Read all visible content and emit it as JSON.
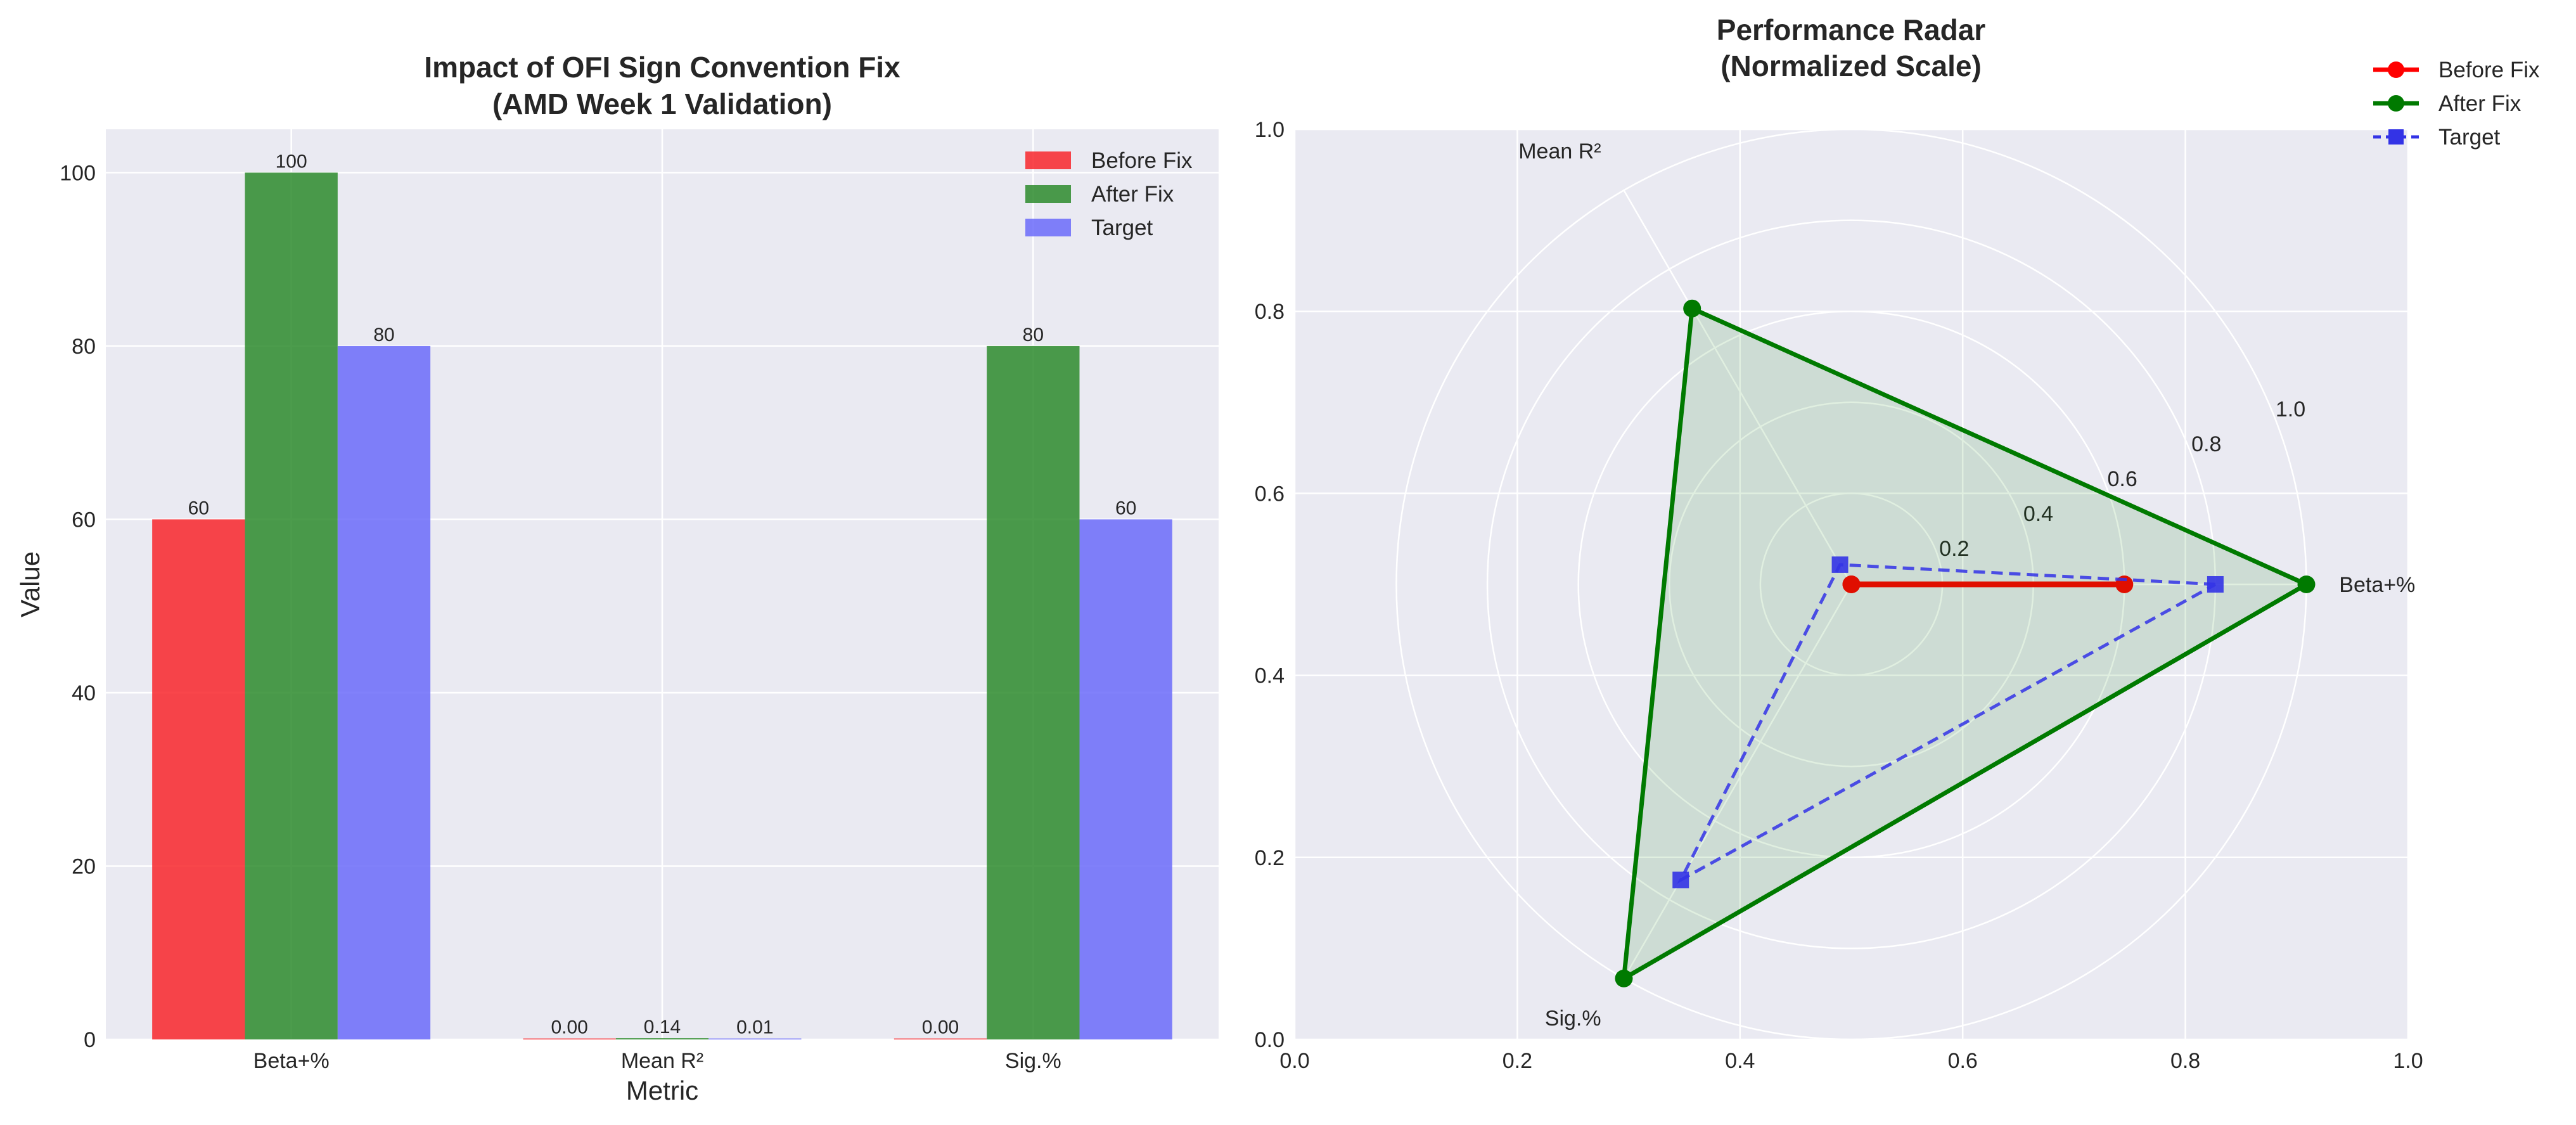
{
  "chart_data": [
    {
      "type": "bar",
      "title_lines": [
        "Impact of OFI Sign Convention Fix",
        "(AMD Week 1 Validation)"
      ],
      "xlabel": "Metric",
      "ylabel": "Value",
      "categories": [
        "Beta+%",
        "Mean R²",
        "Sig.%"
      ],
      "ylim": [
        0,
        105
      ],
      "yticks": [
        0,
        20,
        40,
        60,
        80,
        100
      ],
      "grid": true,
      "legend_position": "top-right",
      "series": [
        {
          "name": "Before Fix",
          "values": [
            60,
            0.0,
            0.0
          ],
          "labels": [
            "60",
            "0.00",
            "0.00"
          ],
          "color": "#f8262b"
        },
        {
          "name": "After Fix",
          "values": [
            100,
            0.14,
            80
          ],
          "labels": [
            "100",
            "0.14",
            "80"
          ],
          "color": "#2d8b2d"
        },
        {
          "name": "Target",
          "values": [
            80,
            0.01,
            60
          ],
          "labels": [
            "80",
            "0.01",
            "60"
          ],
          "color": "#6b6bfa"
        }
      ]
    },
    {
      "type": "radar",
      "title_lines": [
        "Performance Radar",
        "(Normalized Scale)"
      ],
      "axes": [
        "Beta+%",
        "Mean R²",
        "Sig.%"
      ],
      "radial_range": [
        0,
        1.0
      ],
      "radial_ticks": [
        "0.2",
        "0.4",
        "0.6",
        "0.8",
        "1.0"
      ],
      "frame_xticks": [
        "0.0",
        "0.2",
        "0.4",
        "0.6",
        "0.8",
        "1.0"
      ],
      "frame_yticks": [
        "0.0",
        "0.2",
        "0.4",
        "0.6",
        "0.8",
        "1.0"
      ],
      "grid": true,
      "legend_position": "top-right outside",
      "series": [
        {
          "name": "Before Fix",
          "values": [
            0.6,
            0.0,
            0.0
          ],
          "color": "#ff0000",
          "marker": "circle",
          "line": "solid"
        },
        {
          "name": "After Fix",
          "values": [
            1.0,
            0.7,
            1.0
          ],
          "color": "#007a00",
          "marker": "circle",
          "line": "solid",
          "fill": true
        },
        {
          "name": "Target",
          "values": [
            0.8,
            0.05,
            0.75
          ],
          "color": "#3333e6",
          "marker": "square",
          "line": "dashed"
        }
      ]
    }
  ]
}
